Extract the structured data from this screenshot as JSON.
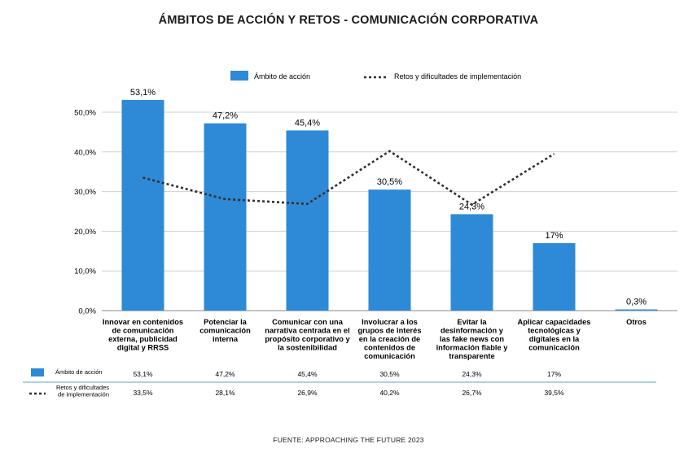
{
  "colors": {
    "bar": "#2e8ad6",
    "line": "#2f2f2f",
    "grid": "#d0d0d0",
    "table_rule": "#5ba3cf"
  },
  "chart_data": {
    "type": "bar",
    "title": "ÁMBITOS DE ACCIÓN Y RETOS - COMUNICACIÓN CORPORATIVA",
    "ylim": [
      0,
      50
    ],
    "yticks": [
      "0,0%",
      "10,0%",
      "20,0%",
      "30,0%",
      "40,0%",
      "50,0%"
    ],
    "grid": true,
    "legend_position": "top-center",
    "categories": [
      [
        "Innovar en contenidos",
        "de comunicación",
        "externa, publicidad",
        "digital y RRSS"
      ],
      [
        "Potenciar la",
        "comunicación",
        "interna"
      ],
      [
        "Comunicar con una",
        "narrativa centrada en el",
        "propósito corporativo y",
        "la sostenibilidad"
      ],
      [
        "Involucrar a los",
        "grupos de interés",
        "en la creación de",
        "contenidos de",
        "comunicación"
      ],
      [
        "Evitar la",
        "desinformación y",
        "las fake news con",
        "información fiable y",
        "transparente"
      ],
      [
        "Aplicar capacidades",
        "tecnológicas y",
        "digitales en la",
        "comunicación"
      ],
      [
        "Otros"
      ]
    ],
    "series": [
      {
        "name": "Ámbito de acción",
        "type": "bar",
        "values": [
          53.1,
          47.2,
          45.4,
          30.5,
          24.3,
          17,
          0.3
        ],
        "labels": [
          "53,1%",
          "47,2%",
          "45,4%",
          "30,5%",
          "24,3%",
          "17%",
          "0,3%"
        ]
      },
      {
        "name": "Retos y dificultades de implementación",
        "type": "line",
        "style": "dotted",
        "values": [
          33.5,
          28.1,
          26.9,
          40.2,
          26.7,
          39.5,
          null
        ],
        "labels": [
          "33,5%",
          "28,1%",
          "26,9%",
          "40,2%",
          "26,7%",
          "39,5%",
          ""
        ]
      }
    ],
    "table": {
      "row_labels": [
        [
          "Ámbito de acción"
        ],
        [
          "Retos y dificultades",
          "de implementación"
        ]
      ]
    },
    "source": "FUENTE: APPROACHING THE FUTURE 2023"
  }
}
